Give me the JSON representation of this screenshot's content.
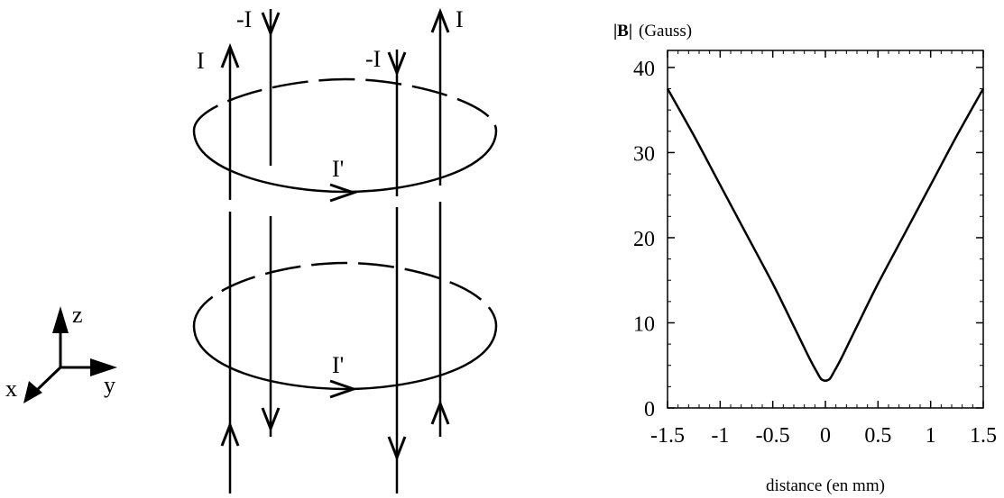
{
  "diagram": {
    "currents": {
      "wire1": "I",
      "wire2": "-I",
      "wire3": "-I",
      "wire4": "I",
      "loop_top": "I'",
      "loop_bottom": "I'"
    },
    "axes": {
      "z": "z",
      "x": "x",
      "y": "y"
    }
  },
  "chart_data": {
    "type": "line",
    "title": "",
    "ylabel_bold": "|B|",
    "ylabel_unit": "(Gauss)",
    "xlabel": "distance (en mm)",
    "xlim": [
      -1.5,
      1.5
    ],
    "ylim": [
      0,
      42
    ],
    "xticks": [
      "-1.5",
      "-1",
      "-0.5",
      "0",
      "0.5",
      "1",
      "1.5"
    ],
    "xtick_values": [
      -1.5,
      -1,
      -0.5,
      0,
      0.5,
      1,
      1.5
    ],
    "yticks": [
      "0",
      "10",
      "20",
      "30",
      "40"
    ],
    "ytick_values": [
      0,
      10,
      20,
      30,
      40
    ],
    "series": [
      {
        "x": [
          -1.5,
          -1.25,
          -1.0,
          -0.75,
          -0.5,
          -0.3,
          -0.15,
          -0.08,
          -0.04,
          0,
          0.04,
          0.08,
          0.15,
          0.3,
          0.5,
          0.75,
          1.0,
          1.25,
          1.5
        ],
        "y": [
          37.5,
          32.0,
          26.2,
          20.4,
          14.6,
          9.6,
          5.8,
          4.2,
          3.4,
          3.2,
          3.4,
          4.2,
          5.8,
          9.6,
          14.6,
          20.4,
          26.2,
          32.0,
          37.5
        ]
      }
    ]
  }
}
